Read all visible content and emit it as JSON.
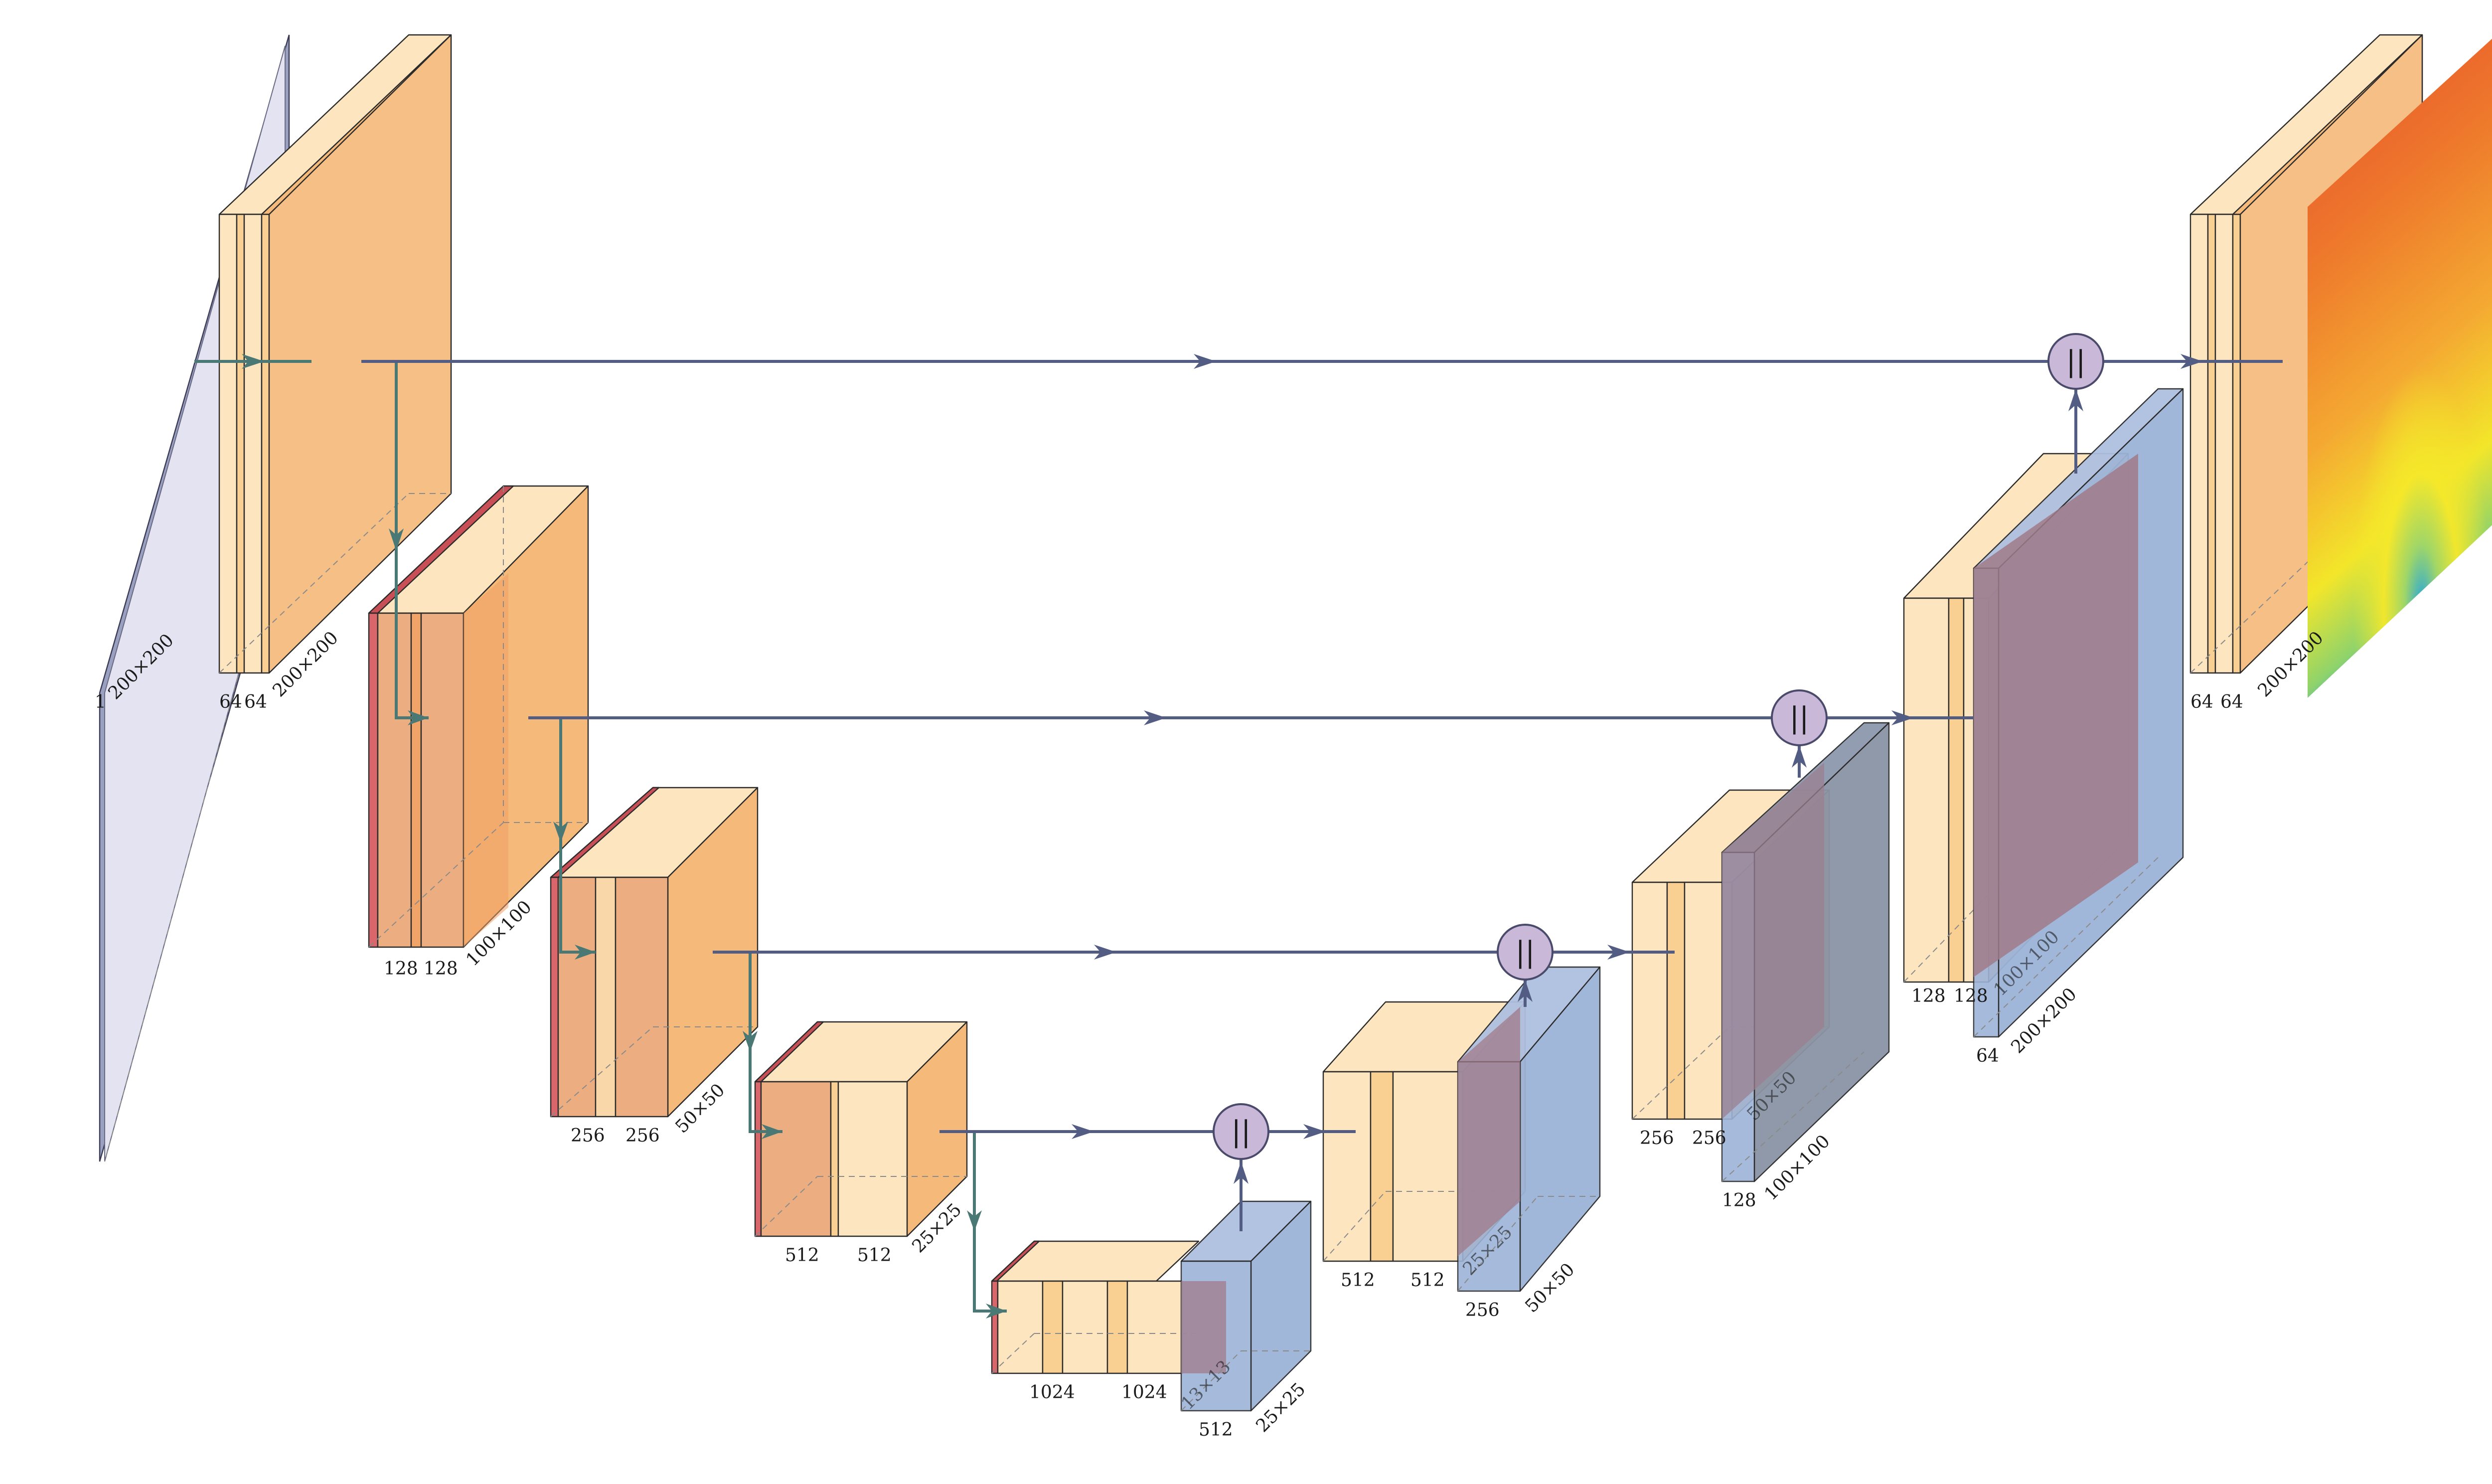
{
  "diagram": {
    "type": "U-Net encoder-decoder architecture",
    "colors": {
      "input_plane": "#e3e3f1",
      "conv_light": "#fde6bf",
      "conv_mid": "#f9cf92",
      "conv_dark": "#f5b97a",
      "pool": "#d9666b",
      "upsample": "#9db4d8",
      "concat_node": "#c9b8d8",
      "skip_arrow": "#535c83",
      "down_arrow": "#4a7874",
      "heatmap_hot": "#e84a2e",
      "heatmap_mid": "#f3e62a",
      "heatmap_cold": "#2aa8d6"
    },
    "concat_symbol": "||",
    "labels": {
      "input_channels": "1",
      "input_size": "200×200",
      "enc1_c1": "64",
      "enc1_c2": "64",
      "enc1_size": "200×200",
      "enc2_c1": "128",
      "enc2_c2": "128",
      "enc2_size": "100×100",
      "enc3_c1": "256",
      "enc3_c2": "256",
      "enc3_size": "50×50",
      "enc4_c1": "512",
      "enc4_c2": "512",
      "enc4_size": "25×25",
      "bott_c1": "1024",
      "bott_c2": "1024",
      "up4_inner": "13×13",
      "up4_c": "512",
      "up4_size": "25×25",
      "dec4_c1": "512",
      "dec4_c2": "512",
      "up3_inner": "25×25",
      "up3_c": "256",
      "up3_size": "50×50",
      "dec3_c1": "256",
      "dec3_c2": "256",
      "up2_inner": "50×50",
      "up2_c": "128",
      "up2_size": "100×100",
      "dec2_c1": "128",
      "dec2_c2": "128",
      "up1_inner": "100×100",
      "up1_c": "64",
      "up1_size": "200×200",
      "dec1_c1": "64",
      "dec1_c2": "64",
      "dec1_size": "200×200"
    }
  }
}
